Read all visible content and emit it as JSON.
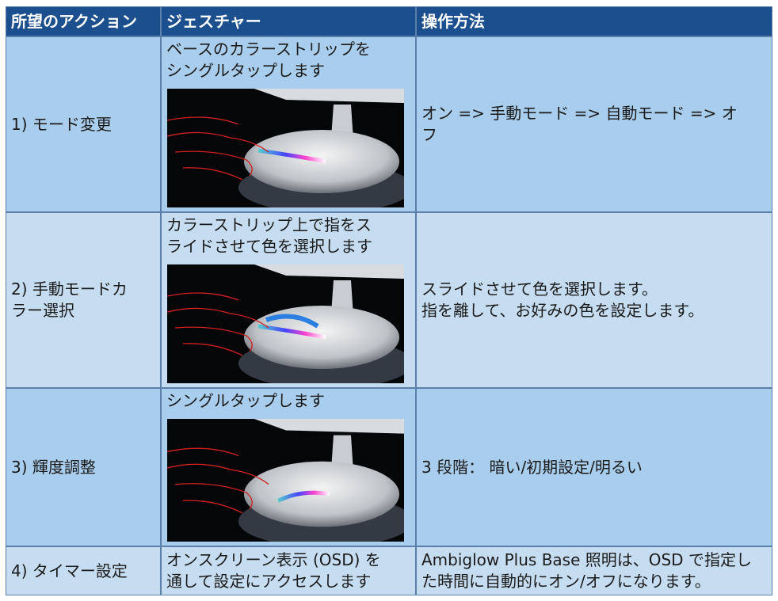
{
  "table": {
    "headers": [
      "所望のアクション",
      "ジェスチャー",
      "操作方法"
    ],
    "rows": [
      {
        "action": [
          "1) モード変更"
        ],
        "gesture": [
          "ベースのカラーストリップを",
          "シングルタップします"
        ],
        "method": [
          "オン => 手動モード => 自動モード => オ",
          "フ"
        ]
      },
      {
        "action": [
          "2) 手動モードカ",
          "ラー選択"
        ],
        "gesture": [
          "カラーストリップ上で指をス",
          "ライドさせて色を選択します"
        ],
        "method": [
          "スライドさせて色を選択します。",
          "指を離して、お好みの色を設定します。"
        ]
      },
      {
        "action": [
          "3) 輝度調整"
        ],
        "gesture": [
          "シングルタップします"
        ],
        "method": [
          "3 段階： 暗い/初期設定/明るい"
        ]
      },
      {
        "action": [
          "4) タイマー設定"
        ],
        "gesture": [
          "オンスクリーン表示 (OSD) を",
          "通して設定にアクセスします"
        ],
        "method": [
          "Ambiglow Plus Base 照明は、OSD で指定し",
          "た時間に自動的にオン/オフになります。"
        ]
      }
    ]
  }
}
